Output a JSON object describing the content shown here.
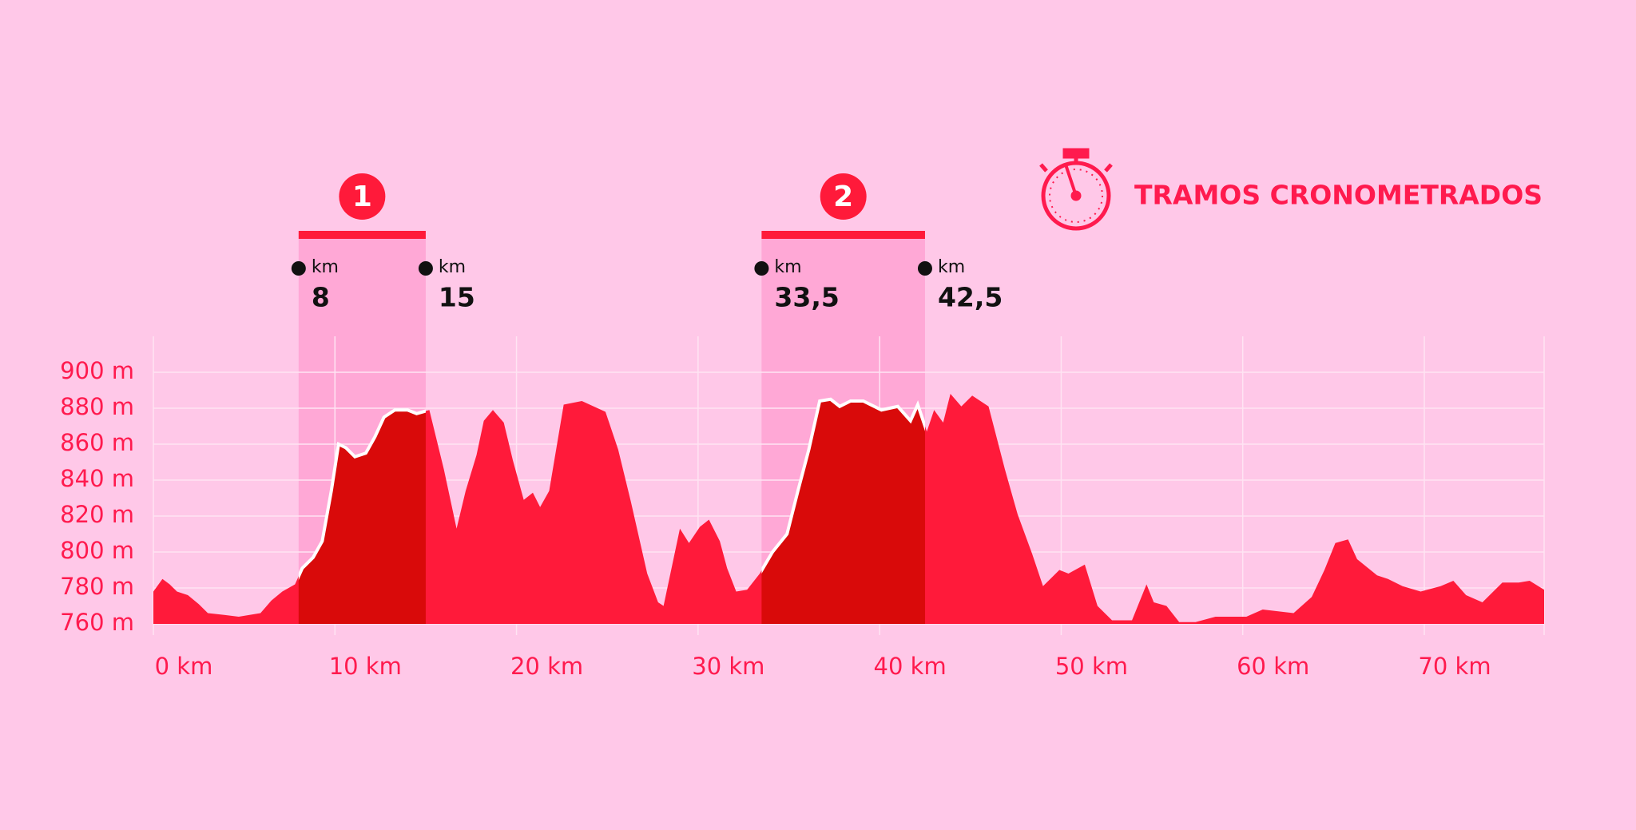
{
  "chart_data": {
    "type": "area",
    "legend_title": "TRAMOS CRONOMETRADOS",
    "unit_label": "km",
    "color": "#ff1a3a",
    "segment_color": "#d90a0a",
    "band_color": "#ffa8d6",
    "x": [
      0,
      0.5,
      0.9,
      1.3,
      1.9,
      2.5,
      3,
      3.9,
      4.7,
      5.3,
      5.9,
      6.5,
      7.1,
      7.8,
      8.2,
      8.8,
      9.3,
      9.8,
      10.2,
      10.6,
      11.1,
      11.7,
      12.2,
      12.7,
      13.3,
      14,
      14.5,
      15.2,
      16,
      16.7,
      17.2,
      17.8,
      18.2,
      18.7,
      19.3,
      19.8,
      20.4,
      20.9,
      21.3,
      21.8,
      22.6,
      23.6,
      24.9,
      25.6,
      26.3,
      27.2,
      27.8,
      28.1,
      29,
      29.5,
      30.1,
      30.6,
      31.2,
      31.6,
      32.1,
      32.7,
      33.4,
      34.1,
      34.9,
      35.5,
      36.1,
      36.7,
      37.3,
      37.8,
      38.4,
      39.1,
      40.1,
      41,
      41.7,
      42.1,
      42.6,
      43,
      43.5,
      43.9,
      44.5,
      45.1,
      46,
      46.9,
      47.6,
      48.4,
      49,
      49.9,
      50.4,
      51.3,
      52,
      52.8,
      53.9,
      54.7,
      55.1,
      55.8,
      56.5,
      57.4,
      58.5,
      60.2,
      61.1,
      62.8,
      63.8,
      64.5,
      65.1,
      65.8,
      66.3,
      67.4,
      68,
      68.8,
      69.8,
      70.9,
      71.6,
      72.3,
      73.2,
      74.3,
      75.2,
      75.8,
      76.6
    ],
    "values": [
      778,
      785,
      782,
      778,
      776,
      771,
      766,
      765,
      764,
      765,
      766,
      773,
      778,
      782,
      791,
      797,
      806,
      834,
      860,
      858,
      853,
      855,
      864,
      875,
      879,
      879,
      877,
      879,
      846,
      813,
      834,
      854,
      873,
      879,
      872,
      851,
      829,
      833,
      825,
      834,
      882,
      884,
      878,
      857,
      828,
      788,
      772,
      770,
      813,
      805,
      814,
      818,
      806,
      791,
      778,
      779,
      788,
      800,
      810,
      834,
      857,
      884,
      885,
      881,
      884,
      884,
      879,
      881,
      873,
      882,
      867,
      879,
      872,
      888,
      881,
      887,
      881,
      846,
      821,
      799,
      781,
      790,
      788,
      793,
      770,
      762,
      762,
      782,
      772,
      770,
      761,
      761,
      764,
      764,
      768,
      766,
      775,
      790,
      805,
      807,
      796,
      787,
      785,
      781,
      778,
      781,
      784,
      776,
      772,
      783,
      783,
      784,
      779
    ],
    "xlim": [
      0,
      76.6
    ],
    "ylim": [
      760,
      920
    ],
    "xticks": [
      {
        "value": 0,
        "label": "0 km"
      },
      {
        "value": 10,
        "label": "10 km"
      },
      {
        "value": 20,
        "label": "20 km"
      },
      {
        "value": 30,
        "label": "30 km"
      },
      {
        "value": 40,
        "label": "40 km"
      },
      {
        "value": 50,
        "label": "50 km"
      },
      {
        "value": 60,
        "label": "60 km"
      },
      {
        "value": 70,
        "label": "70 km"
      }
    ],
    "yticks": [
      {
        "value": 760,
        "label": "760 m"
      },
      {
        "value": 780,
        "label": "780 m"
      },
      {
        "value": 800,
        "label": "800 m"
      },
      {
        "value": 820,
        "label": "820 m"
      },
      {
        "value": 840,
        "label": "840 m"
      },
      {
        "value": 860,
        "label": "860 m"
      },
      {
        "value": 880,
        "label": "880 m"
      },
      {
        "value": 900,
        "label": "900 m"
      }
    ],
    "grid": true,
    "segments": [
      {
        "name": "1",
        "start": {
          "value": 8,
          "label": "8"
        },
        "end": {
          "value": 15,
          "label": "15"
        }
      },
      {
        "name": "2",
        "start": {
          "value": 33.5,
          "label": "33,5"
        },
        "end": {
          "value": 42.5,
          "label": "42,5"
        }
      }
    ]
  }
}
